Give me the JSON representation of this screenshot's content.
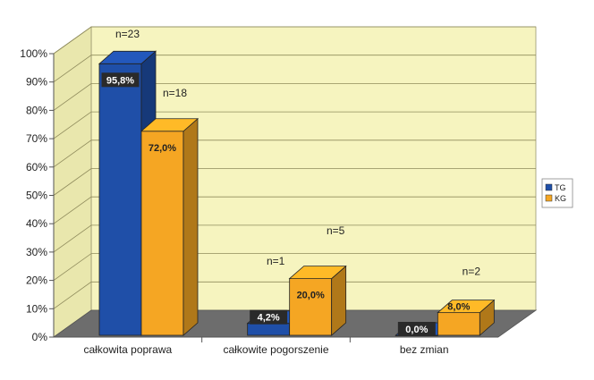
{
  "chart_data": {
    "type": "bar",
    "categories": [
      "całkowita poprawa",
      "całkowite pogorszenie",
      "bez zmian"
    ],
    "series": [
      {
        "name": "TG",
        "values": [
          95.8,
          4.2,
          0.0
        ],
        "value_labels": [
          "95,8%",
          "4,2%",
          "0,0%"
        ],
        "n_labels": [
          "n=23",
          "n=1",
          ""
        ],
        "color": "#1f4fa8"
      },
      {
        "name": "KG",
        "values": [
          72.0,
          20.0,
          8.0
        ],
        "value_labels": [
          "72,0%",
          "20,0%",
          "8,0%"
        ],
        "n_labels": [
          "n=18",
          "n=5",
          "n=2"
        ],
        "color": "#f5a623"
      }
    ],
    "y_tick_labels": [
      "0%",
      "10%",
      "20%",
      "30%",
      "40%",
      "50%",
      "60%",
      "70%",
      "80%",
      "90%",
      "100%"
    ],
    "ylim": [
      0,
      100
    ],
    "grid": true,
    "legend_position": "right",
    "colors": {
      "wall": "#f6f4bf",
      "floor": "#6d6d6d",
      "grid": "#8f8b5c"
    }
  }
}
